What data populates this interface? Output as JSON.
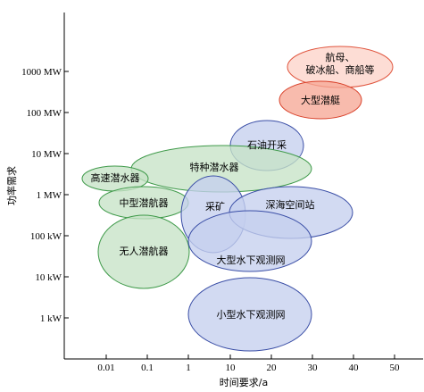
{
  "chart_data": {
    "type": "bubble-region",
    "xlabel": "时间要求/a",
    "ylabel": "功率需求",
    "x_ticks": [
      "0.01",
      "0.1",
      "1",
      "10",
      "20",
      "30",
      "40",
      "50"
    ],
    "y_ticks": [
      "1 kW",
      "10 kW",
      "100 kW",
      "1 MW",
      "10 MW",
      "100 MW",
      "1000 MW"
    ],
    "grid": false,
    "legend": "none",
    "colors": {
      "green": {
        "fill": "#c6e3c6",
        "stroke": "#3f9a4a"
      },
      "blue": {
        "fill": "#c5cfee",
        "stroke": "#3a4ea6"
      },
      "red": {
        "fill": "#f6a896",
        "stroke": "#d9432c"
      },
      "light_red": {
        "fill": "#fcd4c9",
        "stroke": "#e0553e"
      }
    },
    "regions": [
      {
        "id": "aircraft-carrier",
        "label_lines": [
          "航母、",
          "破冰船、商船等"
        ],
        "color": "light_red",
        "x_center": "35",
        "x_span": [
          "27",
          "43"
        ],
        "y_center": "2000 MW",
        "y_span": [
          "700 MW",
          "6000 MW"
        ]
      },
      {
        "id": "large-submarine",
        "label_lines": [
          "大型潜艇"
        ],
        "color": "red",
        "x_center": "32",
        "x_span": [
          "22",
          "42"
        ],
        "y_center": "200 MW",
        "y_span": [
          "60 MW",
          "600 MW"
        ]
      },
      {
        "id": "oil-extraction",
        "label_lines": [
          "石油开采"
        ],
        "color": "blue",
        "x_center": "18",
        "x_span": [
          "10",
          "27"
        ],
        "y_center": "20 MW",
        "y_span": [
          "4 MW",
          "100 MW"
        ]
      },
      {
        "id": "special-submersible",
        "label_lines": [
          "特种潜水器"
        ],
        "color": "green",
        "x_center": "10",
        "x_span": "0.1 – 27",
        "y_center": "6 MW",
        "y_span": [
          "1.5 MW",
          "25 MW"
        ]
      },
      {
        "id": "high-speed-submersible",
        "label_lines": [
          "高速潜水器"
        ],
        "color": "green",
        "x_center": "0.01",
        "x_span": [
          "0.003",
          "0.1"
        ],
        "y_center": "3 MW",
        "y_span": [
          "1.5 MW",
          "6 MW"
        ]
      },
      {
        "id": "medium-submarine",
        "label_lines": [
          "中型潜航器"
        ],
        "color": "green",
        "x_center": "0.06",
        "x_span": [
          "0.008",
          "1"
        ],
        "y_center": "0.8 MW",
        "y_span": [
          "0.3 MW",
          "2 MW"
        ]
      },
      {
        "id": "mining",
        "label_lines": [
          "采矿"
        ],
        "color": "blue",
        "x_center": "5",
        "x_span": [
          "0.6",
          "13"
        ],
        "y_center": "0.3 MW",
        "y_span": [
          "0.05 MW",
          "3 MW"
        ]
      },
      {
        "id": "deep-sea-station",
        "label_lines": [
          "深海空间站"
        ],
        "color": "blue",
        "x_center": "25",
        "x_span": [
          "10",
          "40"
        ],
        "y_center": "0.5 MW",
        "y_span": [
          "0.1 MW",
          "2 MW"
        ]
      },
      {
        "id": "unmanned-submarine",
        "label_lines": [
          "无人潜航器"
        ],
        "color": "green",
        "x_center": "0.08",
        "x_span": [
          "0.01",
          "1"
        ],
        "y_center": "40 kW",
        "y_span": [
          "5 kW",
          "300 kW"
        ]
      },
      {
        "id": "large-observation-net",
        "label_lines": [
          "大型水下观测网"
        ],
        "color": "blue",
        "x_center": "15",
        "x_span": [
          "1",
          "30"
        ],
        "y_center": "60 kW",
        "y_span": [
          "15 kW",
          "250 kW"
        ]
      },
      {
        "id": "small-observation-net",
        "label_lines": [
          "小型水下观测网"
        ],
        "color": "blue",
        "x_center": "15",
        "x_span": [
          "1",
          "30"
        ],
        "y_center": "1 kW",
        "y_span": [
          "0.2 kW",
          "5 kW"
        ]
      }
    ]
  }
}
